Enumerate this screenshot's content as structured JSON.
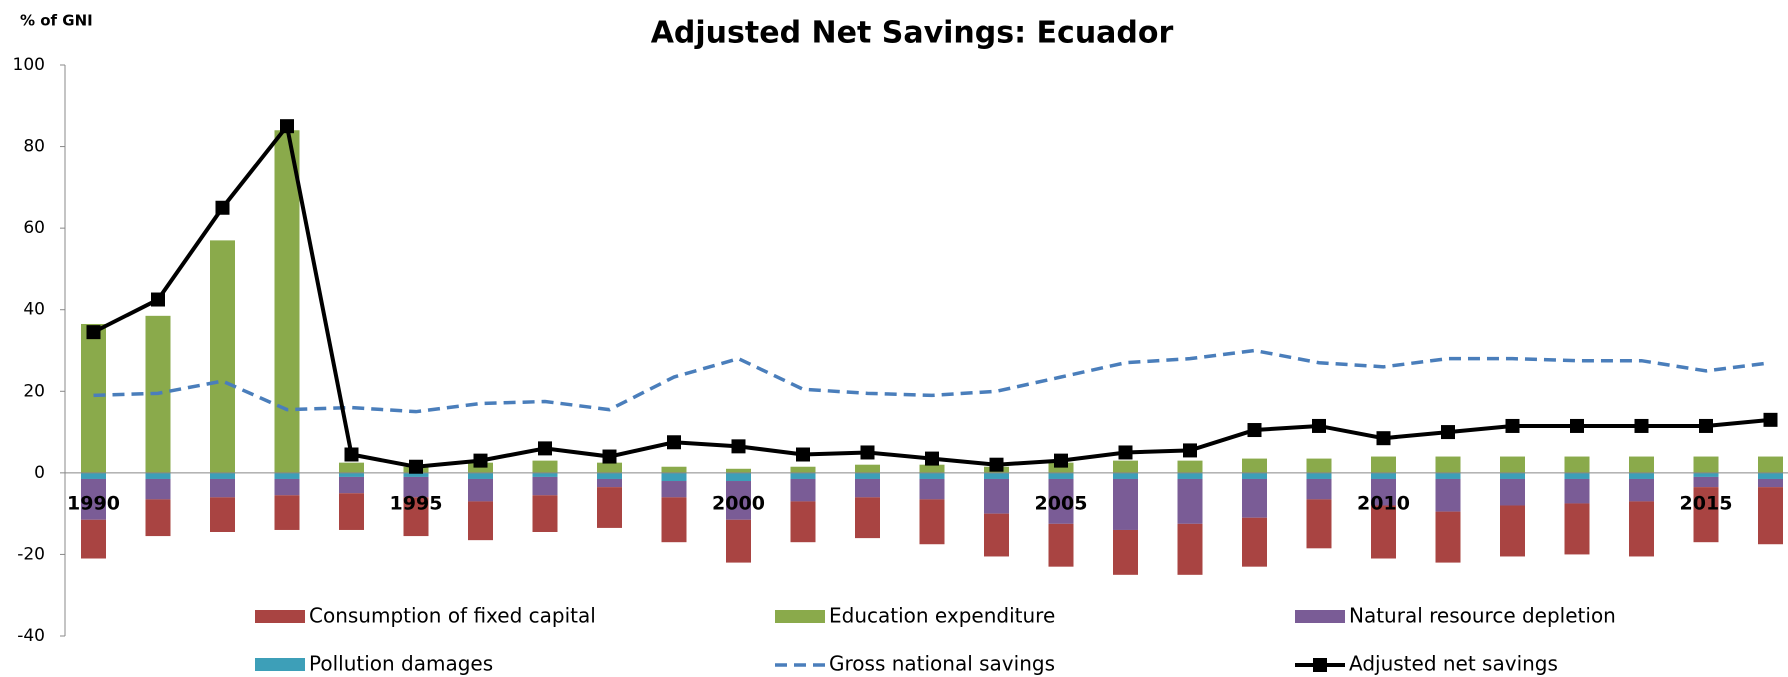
{
  "chart_data": {
    "type": "bar",
    "title": "Adjusted Net Savings: Ecuador",
    "y_label": "% of GNI",
    "categories": [
      "1990",
      null,
      null,
      null,
      null,
      "1995",
      null,
      null,
      null,
      null,
      "2000",
      null,
      null,
      null,
      null,
      "2005",
      null,
      null,
      null,
      null,
      "2010",
      null,
      null,
      null,
      null,
      "2015",
      null
    ],
    "ylim": [
      -40,
      100
    ],
    "yticks": [
      -40,
      -20,
      0,
      20,
      40,
      60,
      80,
      100
    ],
    "grid": false,
    "series": [
      {
        "name": "Consumption of fixed capital",
        "type": "bar",
        "color": "#a94442",
        "values": [
          -9.5,
          -9,
          -8.5,
          -8.5,
          -9,
          -9.5,
          -9.5,
          -9,
          -10,
          -11,
          -10.5,
          -10,
          -10,
          -11,
          -10.5,
          -10.5,
          -11,
          -12.5,
          -12,
          -12,
          -13,
          -12.5,
          -12.5,
          -12.5,
          -13.5,
          -13.5,
          -14
        ]
      },
      {
        "name": "Education expenditure",
        "type": "bar",
        "color": "#8aaa4b",
        "values": [
          36.5,
          38.5,
          57,
          84,
          2.5,
          1.5,
          2.5,
          3,
          2.5,
          1.5,
          1,
          1.5,
          2,
          2,
          1.5,
          2.5,
          3,
          3,
          3.5,
          3.5,
          4,
          4,
          4,
          4,
          4,
          4,
          4
        ]
      },
      {
        "name": "Natural resource depletion",
        "type": "bar",
        "color": "#7a5c96",
        "values": [
          -10,
          -5,
          -4.5,
          -4,
          -4,
          -5,
          -5.5,
          -4.5,
          -2,
          -4,
          -9.5,
          -5.5,
          -4.5,
          -5,
          -8.5,
          -11,
          -12.5,
          -11,
          -9.5,
          -5,
          -6.5,
          -8,
          -6.5,
          -6,
          -5.5,
          -2.5,
          -2
        ]
      },
      {
        "name": "Pollution damages",
        "type": "bar",
        "color": "#3d9fb8",
        "values": [
          -1.5,
          -1.5,
          -1.5,
          -1.5,
          -1,
          -1,
          -1.5,
          -1,
          -1.5,
          -2,
          -2,
          -1.5,
          -1.5,
          -1.5,
          -1.5,
          -1.5,
          -1.5,
          -1.5,
          -1.5,
          -1.5,
          -1.5,
          -1.5,
          -1.5,
          -1.5,
          -1.5,
          -1,
          -1.5
        ]
      },
      {
        "name": "Gross national savings",
        "type": "line",
        "dashed": true,
        "color": "#4a7ebb",
        "values": [
          19,
          19.5,
          22.5,
          15.5,
          16,
          15,
          17,
          17.5,
          15.5,
          23.5,
          28,
          20.5,
          19.5,
          19,
          20,
          23.5,
          27,
          28,
          30,
          27,
          26,
          28,
          28,
          27.5,
          27.5,
          25,
          27
        ]
      },
      {
        "name": "Adjusted net savings",
        "type": "line",
        "dashed": false,
        "marker": true,
        "color": "#000000",
        "values": [
          34.5,
          42.5,
          65,
          85,
          4.5,
          1.5,
          3,
          6,
          4,
          7.5,
          6.5,
          4.5,
          5,
          3.5,
          2,
          3,
          5,
          5.5,
          10.5,
          11.5,
          8.5,
          10,
          11.5,
          11.5,
          11.5,
          11.5,
          13
        ]
      }
    ]
  }
}
